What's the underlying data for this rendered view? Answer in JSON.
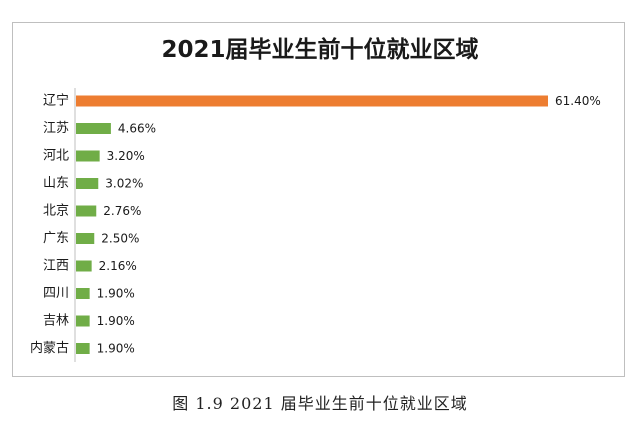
{
  "caption": "图 1.9 2021 届毕业生前十位就业区域",
  "chart_data": {
    "type": "bar",
    "orientation": "horizontal",
    "title": "2021届毕业生前十位就业区域",
    "xlabel": "",
    "ylabel": "",
    "categories": [
      "辽宁",
      "江苏",
      "河北",
      "山东",
      "北京",
      "广东",
      "江西",
      "四川",
      "吉林",
      "内蒙古"
    ],
    "values": [
      61.4,
      4.66,
      3.2,
      3.02,
      2.76,
      2.5,
      2.16,
      1.9,
      1.9,
      1.9
    ],
    "data_labels": [
      "61.40%",
      "4.66%",
      "3.20%",
      "3.02%",
      "2.76%",
      "2.50%",
      "2.16%",
      "1.90%",
      "1.90%",
      "1.90%"
    ],
    "value_unit": "%",
    "xlim": [
      0,
      61.4
    ],
    "grid": false,
    "legend": "none",
    "colors": {
      "highlight": "#ed7d31",
      "default": "#70ad47",
      "axis": "#bfbfbf"
    }
  }
}
